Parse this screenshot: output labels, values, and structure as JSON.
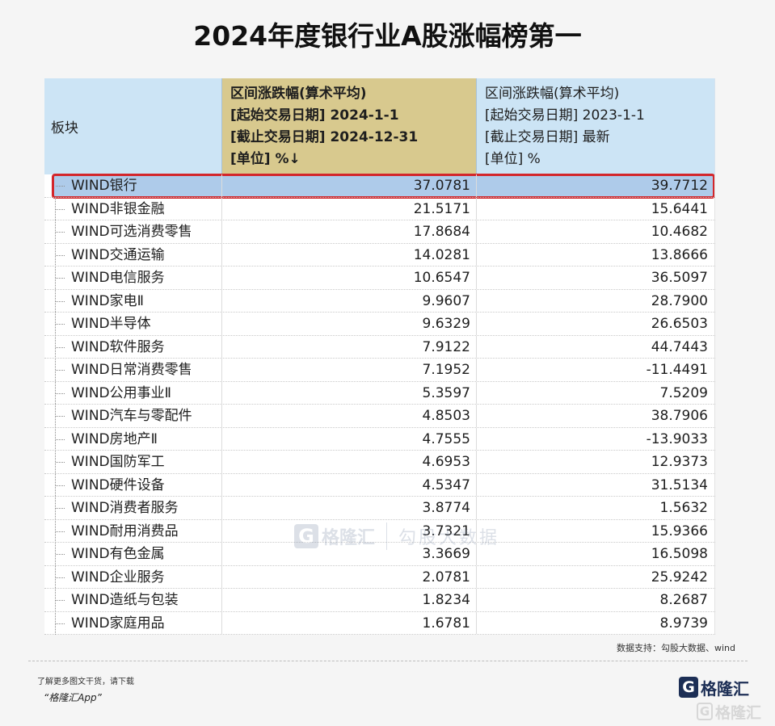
{
  "chart_data": {
    "type": "table",
    "title": "2024年度银行业A股涨幅榜第一",
    "columns": [
      {
        "label": [
          "板块"
        ]
      },
      {
        "label": [
          "区间涨跌幅(算术平均)",
          "[起始交易日期] 2024-1-1",
          "[截止交易日期] 2024-12-31",
          "[单位] %↓"
        ]
      },
      {
        "label": [
          "区间涨跌幅(算术平均)",
          "[起始交易日期] 2023-1-1",
          "[截止交易日期] 最新",
          "[单位] %"
        ]
      }
    ],
    "rows": [
      {
        "sector": "WIND银行",
        "values": [
          37.0781,
          39.7712
        ],
        "highlighted": true
      },
      {
        "sector": "WIND非银金融",
        "values": [
          21.5171,
          15.6441
        ]
      },
      {
        "sector": "WIND可选消费零售",
        "values": [
          17.8684,
          10.4682
        ]
      },
      {
        "sector": "WIND交通运输",
        "values": [
          14.0281,
          13.8666
        ]
      },
      {
        "sector": "WIND电信服务",
        "values": [
          10.6547,
          36.5097
        ]
      },
      {
        "sector": "WIND家电Ⅱ",
        "values": [
          9.9607,
          28.79
        ]
      },
      {
        "sector": "WIND半导体",
        "values": [
          9.6329,
          26.6503
        ]
      },
      {
        "sector": "WIND软件服务",
        "values": [
          7.9122,
          44.7443
        ]
      },
      {
        "sector": "WIND日常消费零售",
        "values": [
          7.1952,
          -11.4491
        ]
      },
      {
        "sector": "WIND公用事业Ⅱ",
        "values": [
          5.3597,
          7.5209
        ]
      },
      {
        "sector": "WIND汽车与零配件",
        "values": [
          4.8503,
          38.7906
        ]
      },
      {
        "sector": "WIND房地产Ⅱ",
        "values": [
          4.7555,
          -13.9033
        ]
      },
      {
        "sector": "WIND国防军工",
        "values": [
          4.6953,
          12.9373
        ]
      },
      {
        "sector": "WIND硬件设备",
        "values": [
          4.5347,
          31.5134
        ]
      },
      {
        "sector": "WIND消费者服务",
        "values": [
          3.8774,
          1.5632
        ]
      },
      {
        "sector": "WIND耐用消费品",
        "values": [
          3.7321,
          15.9366
        ]
      },
      {
        "sector": "WIND有色金属",
        "values": [
          3.3669,
          16.5098
        ]
      },
      {
        "sector": "WIND企业服务",
        "values": [
          2.0781,
          25.9242
        ]
      },
      {
        "sector": "WIND造纸与包装",
        "values": [
          1.8234,
          8.2687
        ]
      },
      {
        "sector": "WIND家庭用品",
        "values": [
          1.6781,
          8.9739
        ]
      }
    ]
  },
  "source": "数据支持：勾股大数据、wind",
  "footer": {
    "promo": "了解更多图文干货，请下载",
    "app": "“格隆汇App”"
  },
  "logo": {
    "mark": "G",
    "name": "格隆汇"
  },
  "watermark": {
    "mark": "G",
    "brand": "格隆汇",
    "data_brand": "勾股大数据"
  },
  "corner_watermark": {
    "mark": "G",
    "brand": "格隆汇"
  },
  "colors": {
    "header_blue": "#CCE4F5",
    "header_tan": "#D8C98E",
    "highlight_fill": "#AECBEA",
    "highlight_border": "#D3262B",
    "logo_navy": "#1C2E55",
    "watermark": "#8393AC"
  }
}
